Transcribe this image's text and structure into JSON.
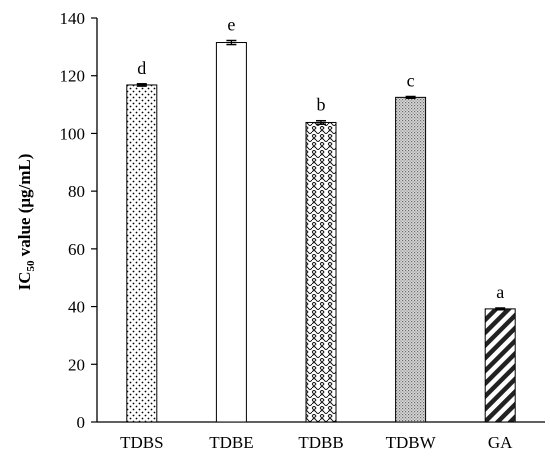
{
  "chart_data": {
    "type": "bar",
    "categories": [
      "TDBS",
      "TDBE",
      "TDBB",
      "TDBW",
      "GA"
    ],
    "values": [
      116.8,
      131.5,
      103.8,
      112.5,
      39.2
    ],
    "errors": [
      0.4,
      0.7,
      0.6,
      0.3,
      0.3
    ],
    "significance_letters": [
      "d",
      "e",
      "b",
      "c",
      "a"
    ],
    "patterns": [
      "dots",
      "none",
      "crosshatch-wave",
      "dense-dots",
      "diagonal-stripes"
    ],
    "ylabel_main": "IC",
    "ylabel_sub": "50",
    "ylabel_rest": " value (μg/mL)",
    "xlabel": "",
    "title": "",
    "ylim": [
      0,
      140
    ],
    "yticks": [
      "0",
      "20",
      "40",
      "60",
      "80",
      "100",
      "120",
      "140"
    ],
    "grid": false,
    "legend": "none"
  }
}
